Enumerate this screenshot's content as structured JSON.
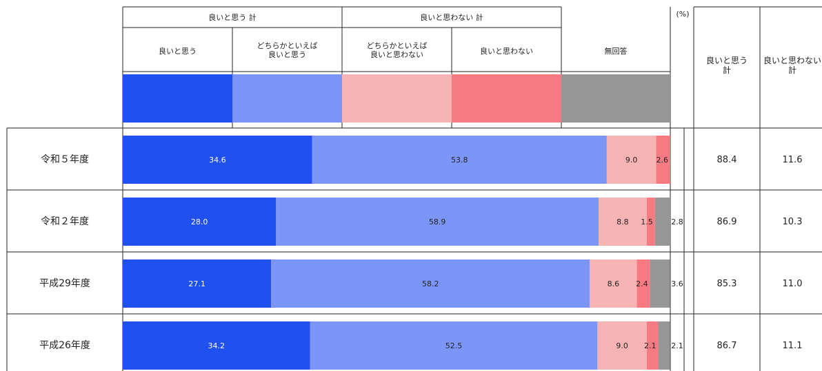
{
  "colors": {
    "good": "#2050f0",
    "somewhat_good": "#7b96f8",
    "somewhat_not_good": "#f8b4b4",
    "not_good": "#f57a82",
    "no_answer": "#969696",
    "border": "#222222"
  },
  "legend": {
    "group_good": "良いと思う 計",
    "group_not_good": "良いと思わない 計",
    "unit": "(%)",
    "items": [
      "良いと思う",
      "どちらかといえば\n良いと思う",
      "どちらかといえば\n良いと思わない",
      "良いと思わない",
      "無回答"
    ]
  },
  "totals_header": {
    "good_total": "良いと思う\n計",
    "not_good_total": "良いと思わない\n計"
  },
  "chart_data": {
    "type": "bar",
    "stacked": true,
    "orientation": "horizontal",
    "unit": "%",
    "categories": [
      "令和５年度",
      "令和２年度",
      "平成29年度",
      "平成26年度"
    ],
    "series": [
      {
        "name": "良いと思う",
        "values": [
          34.6,
          28.0,
          27.1,
          34.2
        ]
      },
      {
        "name": "どちらかといえば良いと思う",
        "values": [
          53.8,
          58.9,
          58.2,
          52.5
        ]
      },
      {
        "name": "どちらかといえば良いと思わない",
        "values": [
          9.0,
          8.8,
          8.6,
          9.0
        ]
      },
      {
        "name": "良いと思わない",
        "values": [
          2.6,
          1.5,
          2.4,
          2.1
        ]
      },
      {
        "name": "無回答",
        "values": [
          0.0,
          2.8,
          3.6,
          2.1
        ]
      }
    ],
    "bar_labels": [
      [
        "34.6",
        "53.8",
        "9.0",
        "2.6",
        ""
      ],
      [
        "28.0",
        "58.9",
        "8.8",
        "1.5",
        "2.8"
      ],
      [
        "27.1",
        "58.2",
        "8.6",
        "2.4",
        "3.6"
      ],
      [
        "34.2",
        "52.5",
        "9.0",
        "2.1",
        "2.1"
      ]
    ],
    "totals": {
      "good_total": [
        88.4,
        86.9,
        85.3,
        86.7
      ],
      "not_good_total": [
        11.6,
        10.3,
        11.0,
        11.1
      ]
    },
    "total_labels": {
      "good_total": [
        "88.4",
        "86.9",
        "85.3",
        "86.7"
      ],
      "not_good_total": [
        "11.6",
        "10.3",
        "11.0",
        "11.1"
      ]
    },
    "xlim": [
      0,
      100
    ]
  }
}
